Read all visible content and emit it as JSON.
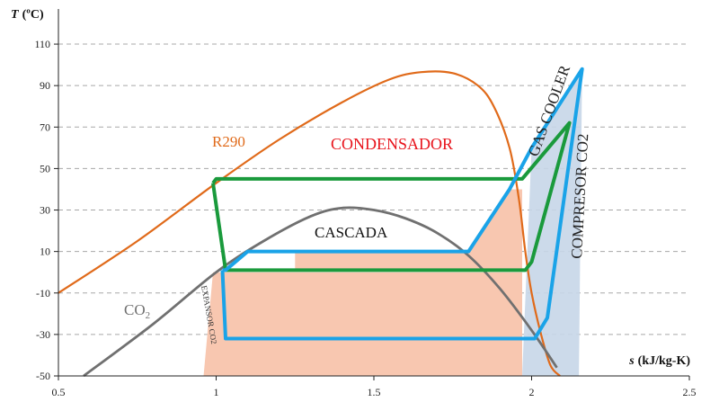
{
  "chart_data": {
    "type": "line",
    "title": "",
    "xlabel": "s (kJ/kg-K)",
    "ylabel": "T (ºC)",
    "xlim": [
      0.5,
      2.5
    ],
    "ylim": [
      -50,
      120
    ],
    "x_ticks": [
      "0.5",
      "1",
      "1.5",
      "2",
      "2.5"
    ],
    "y_ticks": [
      "110",
      "90",
      "70",
      "50",
      "30",
      "10",
      "-10",
      "-30",
      "-50"
    ],
    "grid": "horizontal dashed",
    "colors": {
      "r290": "#e06a1a",
      "co2": "#707070",
      "r290_cycle": "#1a9a3c",
      "co2_cycle": "#1aa3e8",
      "heat_fill": "#f8c7b0",
      "compressor_fill": "#c7d6e8",
      "red_label": "#e8141c"
    },
    "series": [
      {
        "name": "R290",
        "role": "saturation dome",
        "x": [
          0.5,
          0.75,
          1.0,
          1.2,
          1.4,
          1.55,
          1.65,
          1.75,
          1.83,
          1.88,
          1.93,
          1.96,
          1.98,
          2.0,
          2.03,
          2.06,
          2.09
        ],
        "y": [
          -10,
          15,
          43,
          64,
          82,
          93,
          96.5,
          96,
          90,
          80,
          60,
          35,
          10,
          -10,
          -30,
          -45,
          -50
        ]
      },
      {
        "name": "CO2",
        "role": "saturation dome",
        "x": [
          0.58,
          0.8,
          1.0,
          1.15,
          1.3,
          1.4,
          1.5,
          1.6,
          1.7,
          1.8,
          1.9,
          2.0,
          2.08
        ],
        "y": [
          -50,
          -25,
          0,
          15,
          27,
          31,
          30,
          26,
          19,
          8,
          -8,
          -28,
          -46
        ]
      },
      {
        "name": "",
        "role": "R290 cycle",
        "x": [
          0.99,
          1.03,
          1.98,
          2.0,
          2.12,
          1.97,
          1.0,
          0.99
        ],
        "y": [
          43,
          1,
          1,
          5,
          72,
          45,
          45,
          43
        ]
      },
      {
        "name": "",
        "role": "CO2 cycle",
        "x": [
          1.02,
          1.03,
          2.01,
          2.05,
          2.16,
          2.0,
          1.93,
          1.8,
          1.1,
          1.03,
          1.02
        ],
        "y": [
          1,
          -32,
          -32,
          -22,
          98,
          60,
          40,
          10,
          10,
          1,
          1
        ]
      }
    ],
    "annotations": {
      "r290": "R290",
      "co2": "CO",
      "co2_sub": "2",
      "condensador": "CONDENSADOR",
      "cascada": "CASCADA",
      "gas_cooler": "GAS COOLER",
      "compresor": "COMPRESOR CO2",
      "expansor": "EXPANSOR CO2"
    }
  }
}
